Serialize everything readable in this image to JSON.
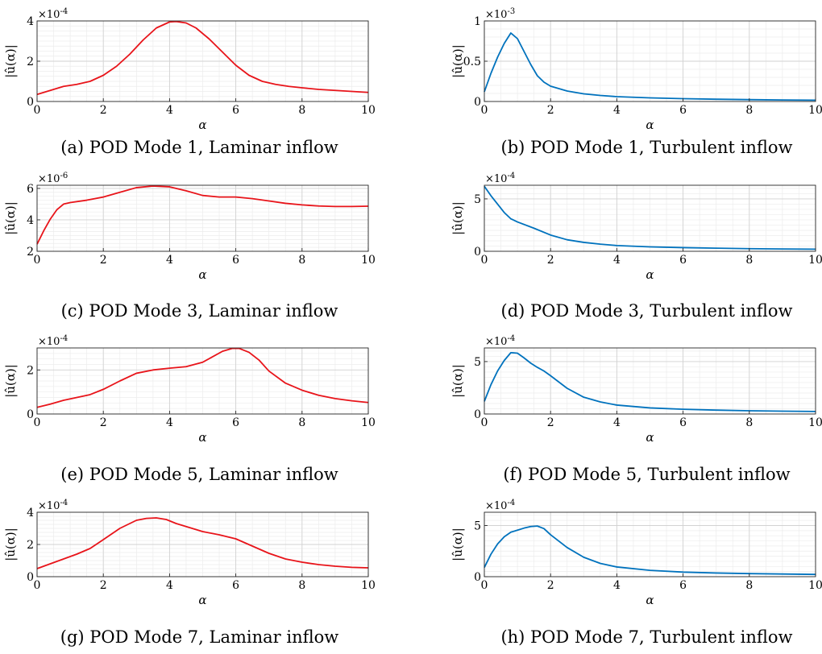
{
  "chart_data": [
    {
      "type": "line",
      "caption": "(a) POD Mode 1, Laminar inflow",
      "xlabel": "α",
      "ylabel": "|û(α)|",
      "xlim": [
        0,
        10
      ],
      "xticks": [
        0,
        2,
        4,
        6,
        8,
        10
      ],
      "ylim": [
        0,
        4
      ],
      "yticks": [
        0,
        2,
        4
      ],
      "y_multiplier": "×10",
      "y_multiplier_exp": "-4",
      "grid": true,
      "color": "#e8141a",
      "series": [
        {
          "x": [
            0,
            0.4,
            0.8,
            1.2,
            1.6,
            2.0,
            2.4,
            2.8,
            3.2,
            3.6,
            4.0,
            4.2,
            4.5,
            4.8,
            5.2,
            5.6,
            6.0,
            6.4,
            6.8,
            7.2,
            7.6,
            8.0,
            8.5,
            9.0,
            9.5,
            10.0
          ],
          "y": [
            0.35,
            0.55,
            0.75,
            0.85,
            1.0,
            1.3,
            1.75,
            2.35,
            3.05,
            3.65,
            3.95,
            3.97,
            3.9,
            3.65,
            3.1,
            2.45,
            1.8,
            1.3,
            1.0,
            0.85,
            0.75,
            0.68,
            0.6,
            0.55,
            0.5,
            0.45
          ]
        }
      ]
    },
    {
      "type": "line",
      "caption": "(b) POD Mode 1, Turbulent inflow",
      "xlabel": "α",
      "ylabel": "|û(α)|",
      "xlim": [
        0,
        10
      ],
      "xticks": [
        0,
        2,
        4,
        6,
        8,
        10
      ],
      "ylim": [
        0,
        1
      ],
      "yticks": [
        0,
        0.5,
        1
      ],
      "y_multiplier": "×10",
      "y_multiplier_exp": "-3",
      "grid": true,
      "color": "#0072bd",
      "series": [
        {
          "x": [
            0,
            0.2,
            0.4,
            0.6,
            0.8,
            1.0,
            1.2,
            1.4,
            1.6,
            1.8,
            2.0,
            2.5,
            3.0,
            3.5,
            4.0,
            5.0,
            6.0,
            7.0,
            8.0,
            9.0,
            10.0
          ],
          "y": [
            0.12,
            0.35,
            0.55,
            0.72,
            0.85,
            0.78,
            0.62,
            0.46,
            0.32,
            0.24,
            0.19,
            0.13,
            0.095,
            0.075,
            0.06,
            0.045,
            0.035,
            0.028,
            0.023,
            0.019,
            0.016
          ]
        }
      ]
    },
    {
      "type": "line",
      "caption": "(c) POD Mode 3, Laminar inflow",
      "xlabel": "α",
      "ylabel": "|û(α)|",
      "xlim": [
        0,
        10
      ],
      "xticks": [
        0,
        2,
        4,
        6,
        8,
        10
      ],
      "ylim": [
        2,
        6.2
      ],
      "yticks": [
        2,
        4,
        6
      ],
      "y_multiplier": "×10",
      "y_multiplier_exp": "-6",
      "grid": true,
      "color": "#e8141a",
      "series": [
        {
          "x": [
            0,
            0.2,
            0.4,
            0.6,
            0.8,
            1.0,
            1.5,
            2.0,
            2.5,
            3.0,
            3.5,
            4.0,
            4.5,
            5.0,
            5.5,
            6.0,
            6.5,
            7.0,
            7.5,
            8.0,
            8.5,
            9.0,
            9.5,
            10.0
          ],
          "y": [
            2.45,
            3.3,
            4.05,
            4.65,
            5.0,
            5.1,
            5.25,
            5.45,
            5.75,
            6.05,
            6.15,
            6.1,
            5.85,
            5.55,
            5.45,
            5.45,
            5.35,
            5.2,
            5.05,
            4.95,
            4.88,
            4.85,
            4.85,
            4.87
          ]
        }
      ]
    },
    {
      "type": "line",
      "caption": "(d) POD Mode 3, Turbulent inflow",
      "xlabel": "α",
      "ylabel": "|û(α)|",
      "xlim": [
        0,
        10
      ],
      "xticks": [
        0,
        2,
        4,
        6,
        8,
        10
      ],
      "ylim": [
        0,
        6.3
      ],
      "yticks": [
        0,
        5
      ],
      "y_multiplier": "×10",
      "y_multiplier_exp": "-4",
      "grid": true,
      "color": "#0072bd",
      "series": [
        {
          "x": [
            0,
            0.2,
            0.4,
            0.6,
            0.8,
            1.0,
            1.5,
            2.0,
            2.5,
            3.0,
            3.5,
            4.0,
            5.0,
            6.0,
            7.0,
            8.0,
            9.0,
            10.0
          ],
          "y": [
            6.2,
            5.3,
            4.5,
            3.7,
            3.1,
            2.8,
            2.2,
            1.55,
            1.1,
            0.85,
            0.68,
            0.55,
            0.42,
            0.35,
            0.3,
            0.25,
            0.22,
            0.2
          ]
        }
      ]
    },
    {
      "type": "line",
      "caption": "(e) POD Mode 5, Laminar inflow",
      "xlabel": "α",
      "ylabel": "|û(α)|",
      "xlim": [
        0,
        10
      ],
      "xticks": [
        0,
        2,
        4,
        6,
        8,
        10
      ],
      "ylim": [
        0,
        3
      ],
      "yticks": [
        0,
        2
      ],
      "y_multiplier": "×10",
      "y_multiplier_exp": "-4",
      "grid": true,
      "color": "#e8141a",
      "series": [
        {
          "x": [
            0,
            0.4,
            0.8,
            1.2,
            1.6,
            2.0,
            2.5,
            3.0,
            3.5,
            4.0,
            4.5,
            5.0,
            5.3,
            5.6,
            5.9,
            6.1,
            6.4,
            6.7,
            7.0,
            7.5,
            8.0,
            8.5,
            9.0,
            9.5,
            10.0
          ],
          "y": [
            0.3,
            0.45,
            0.62,
            0.75,
            0.88,
            1.12,
            1.5,
            1.85,
            2.0,
            2.08,
            2.15,
            2.35,
            2.6,
            2.85,
            2.98,
            2.98,
            2.8,
            2.45,
            1.95,
            1.4,
            1.08,
            0.85,
            0.7,
            0.6,
            0.52
          ]
        }
      ]
    },
    {
      "type": "line",
      "caption": "(f) POD Mode 5, Turbulent inflow",
      "xlabel": "α",
      "ylabel": "|û(α)|",
      "xlim": [
        0,
        10
      ],
      "xticks": [
        0,
        2,
        4,
        6,
        8,
        10
      ],
      "ylim": [
        0,
        6.3
      ],
      "yticks": [
        0,
        5
      ],
      "y_multiplier": "×10",
      "y_multiplier_exp": "-4",
      "grid": true,
      "color": "#0072bd",
      "series": [
        {
          "x": [
            0,
            0.2,
            0.4,
            0.6,
            0.8,
            1.0,
            1.2,
            1.4,
            1.6,
            1.8,
            2.0,
            2.5,
            3.0,
            3.5,
            4.0,
            5.0,
            6.0,
            7.0,
            8.0,
            9.0,
            10.0
          ],
          "y": [
            1.2,
            2.8,
            4.1,
            5.1,
            5.85,
            5.8,
            5.35,
            4.85,
            4.45,
            4.1,
            3.65,
            2.45,
            1.6,
            1.15,
            0.85,
            0.58,
            0.45,
            0.37,
            0.31,
            0.27,
            0.24
          ]
        }
      ]
    },
    {
      "type": "line",
      "caption": "(g) POD Mode 7, Laminar inflow",
      "xlabel": "α",
      "ylabel": "|û(α)|",
      "xlim": [
        0,
        10
      ],
      "xticks": [
        0,
        2,
        4,
        6,
        8,
        10
      ],
      "ylim": [
        0,
        4
      ],
      "yticks": [
        0,
        2,
        4
      ],
      "y_multiplier": "×10",
      "y_multiplier_exp": "-4",
      "grid": true,
      "color": "#e8141a",
      "series": [
        {
          "x": [
            0,
            0.4,
            0.8,
            1.2,
            1.6,
            2.0,
            2.5,
            3.0,
            3.3,
            3.6,
            3.9,
            4.2,
            4.6,
            5.0,
            5.5,
            6.0,
            6.5,
            7.0,
            7.5,
            8.0,
            8.5,
            9.0,
            9.5,
            10.0
          ],
          "y": [
            0.5,
            0.8,
            1.1,
            1.4,
            1.75,
            2.3,
            3.0,
            3.5,
            3.62,
            3.65,
            3.55,
            3.3,
            3.05,
            2.8,
            2.6,
            2.35,
            1.9,
            1.45,
            1.1,
            0.9,
            0.75,
            0.65,
            0.58,
            0.55
          ]
        }
      ]
    },
    {
      "type": "line",
      "caption": "(h) POD Mode 7, Turbulent inflow",
      "xlabel": "α",
      "ylabel": "|û(α)|",
      "xlim": [
        0,
        10
      ],
      "xticks": [
        0,
        2,
        4,
        6,
        8,
        10
      ],
      "ylim": [
        0,
        6.3
      ],
      "yticks": [
        0,
        5
      ],
      "y_multiplier": "×10",
      "y_multiplier_exp": "-4",
      "grid": true,
      "color": "#0072bd",
      "series": [
        {
          "x": [
            0,
            0.2,
            0.4,
            0.6,
            0.8,
            1.0,
            1.2,
            1.4,
            1.6,
            1.8,
            2.0,
            2.5,
            3.0,
            3.5,
            4.0,
            5.0,
            6.0,
            7.0,
            8.0,
            9.0,
            10.0
          ],
          "y": [
            0.9,
            2.2,
            3.2,
            3.9,
            4.35,
            4.55,
            4.75,
            4.9,
            4.95,
            4.7,
            4.1,
            2.85,
            1.9,
            1.3,
            0.95,
            0.62,
            0.45,
            0.36,
            0.3,
            0.26,
            0.22
          ]
        }
      ]
    }
  ]
}
